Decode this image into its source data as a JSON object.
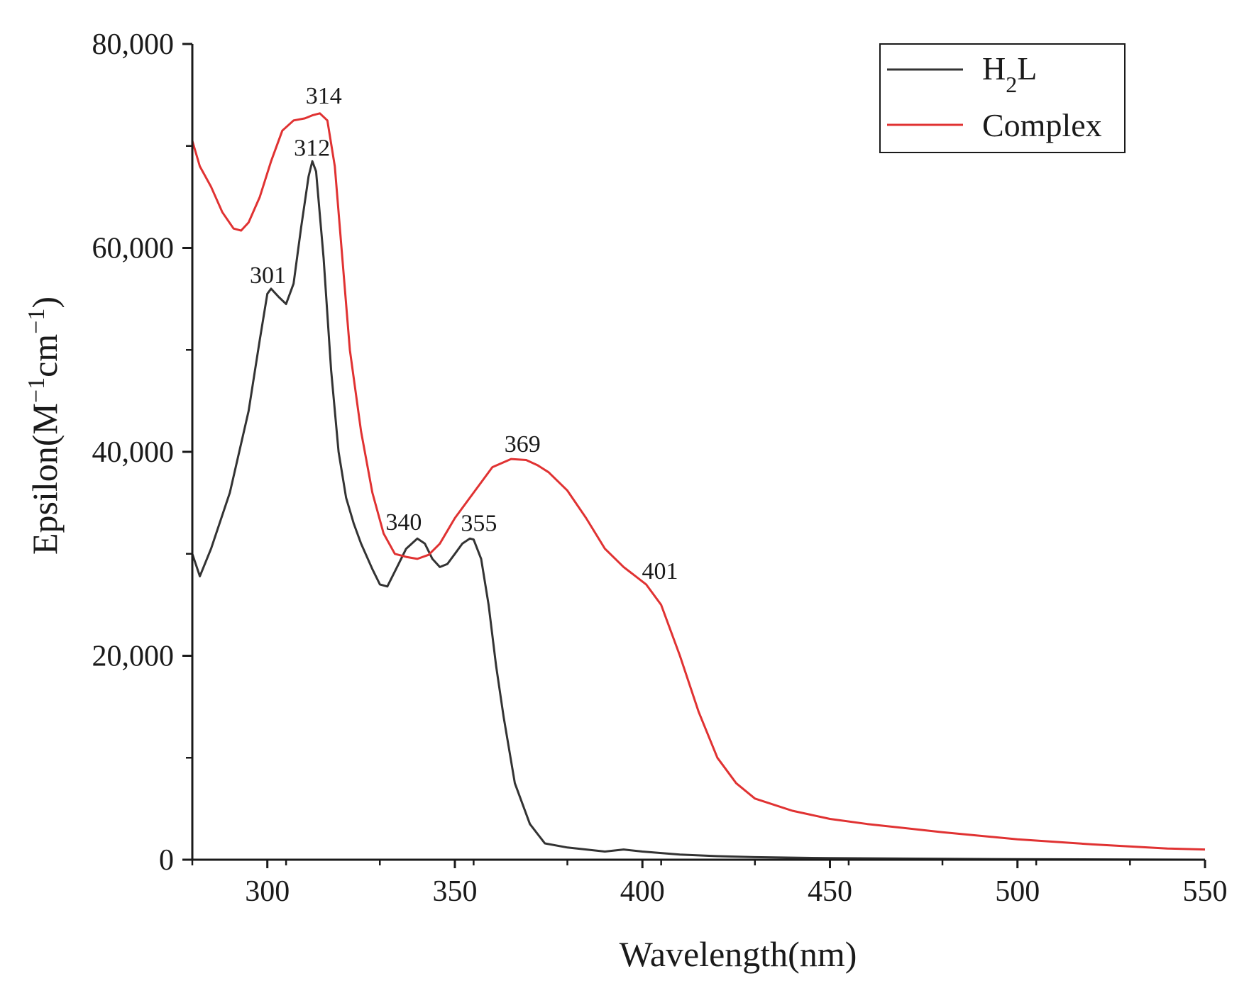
{
  "chart_data": {
    "type": "line",
    "title": "",
    "xlabel": "Wavelength(nm)",
    "ylabel_parts": [
      "Epsilon(M",
      "−1",
      "cm",
      "−1",
      ")"
    ],
    "xlim": [
      280,
      550
    ],
    "ylim": [
      0,
      80000
    ],
    "x_ticks": [
      300,
      350,
      400,
      450,
      500,
      550
    ],
    "x_tick_labels": [
      "300",
      "350",
      "400",
      "450",
      "500",
      "550"
    ],
    "y_ticks": [
      0,
      20000,
      40000,
      60000,
      80000
    ],
    "y_tick_labels": [
      "0",
      "20,000",
      "40,000",
      "60,000",
      "80,000"
    ],
    "grid": false,
    "legend_position": "top-right",
    "series": [
      {
        "name": "H2L",
        "legend_main": "H",
        "legend_sub": "2",
        "legend_tail": "L",
        "color": "#333333",
        "x": [
          280,
          282,
          285,
          290,
          295,
          298,
          300,
          301,
          303,
          305,
          307,
          309,
          311,
          312,
          313,
          315,
          317,
          319,
          321,
          323,
          325,
          328,
          330,
          332,
          335,
          337,
          340,
          342,
          344,
          346,
          348,
          350,
          352,
          354,
          355,
          357,
          359,
          361,
          363,
          366,
          370,
          374,
          380,
          390,
          395,
          400,
          410,
          420,
          430,
          450,
          500,
          550
        ],
        "values": [
          30000,
          27800,
          30500,
          36000,
          44000,
          51000,
          55500,
          56000,
          55200,
          54500,
          56500,
          62000,
          67000,
          68500,
          67500,
          59000,
          48000,
          40000,
          35500,
          33000,
          31000,
          28500,
          27000,
          26800,
          29000,
          30500,
          31500,
          31000,
          29500,
          28700,
          29000,
          30000,
          31000,
          31500,
          31400,
          29500,
          25000,
          19000,
          14000,
          7500,
          3500,
          1600,
          1200,
          800,
          1000,
          800,
          500,
          350,
          250,
          150,
          50,
          0
        ]
      },
      {
        "name": "Complex",
        "legend_main": "Complex",
        "legend_sub": "",
        "legend_tail": "",
        "color": "#e03232",
        "x": [
          280,
          282,
          285,
          288,
          291,
          293,
          295,
          298,
          301,
          304,
          307,
          310,
          312,
          314,
          316,
          318,
          320,
          322,
          325,
          328,
          331,
          334,
          337,
          340,
          343,
          346,
          350,
          355,
          360,
          365,
          369,
          372,
          375,
          380,
          385,
          390,
          395,
          401,
          405,
          410,
          415,
          420,
          425,
          430,
          440,
          450,
          460,
          480,
          500,
          520,
          540,
          550
        ],
        "values": [
          70500,
          68000,
          66000,
          63500,
          61900,
          61700,
          62500,
          65000,
          68500,
          71500,
          72500,
          72700,
          73000,
          73200,
          72500,
          68000,
          59000,
          50000,
          42000,
          36000,
          32000,
          30000,
          29700,
          29500,
          29900,
          31000,
          33500,
          36000,
          38500,
          39300,
          39200,
          38700,
          38000,
          36200,
          33500,
          30500,
          28700,
          27000,
          25000,
          20000,
          14500,
          10000,
          7500,
          6000,
          4800,
          4000,
          3500,
          2700,
          2000,
          1500,
          1100,
          1000
        ]
      }
    ],
    "peak_annotations": [
      {
        "label": "314",
        "x": 314,
        "y": 73200,
        "dx": -20,
        "dy": -14
      },
      {
        "label": "312",
        "x": 312,
        "y": 68500,
        "dx": -26,
        "dy": -8
      },
      {
        "label": "301",
        "x": 301,
        "y": 56000,
        "dx": -30,
        "dy": -8
      },
      {
        "label": "340",
        "x": 341,
        "y": 31500,
        "dx": -50,
        "dy": -12
      },
      {
        "label": "355",
        "x": 355,
        "y": 31400,
        "dx": -18,
        "dy": -12
      },
      {
        "label": "369",
        "x": 367,
        "y": 39300,
        "dx": -20,
        "dy": -10
      },
      {
        "label": "401",
        "x": 401,
        "y": 27000,
        "dx": -6,
        "dy": -8
      }
    ]
  }
}
